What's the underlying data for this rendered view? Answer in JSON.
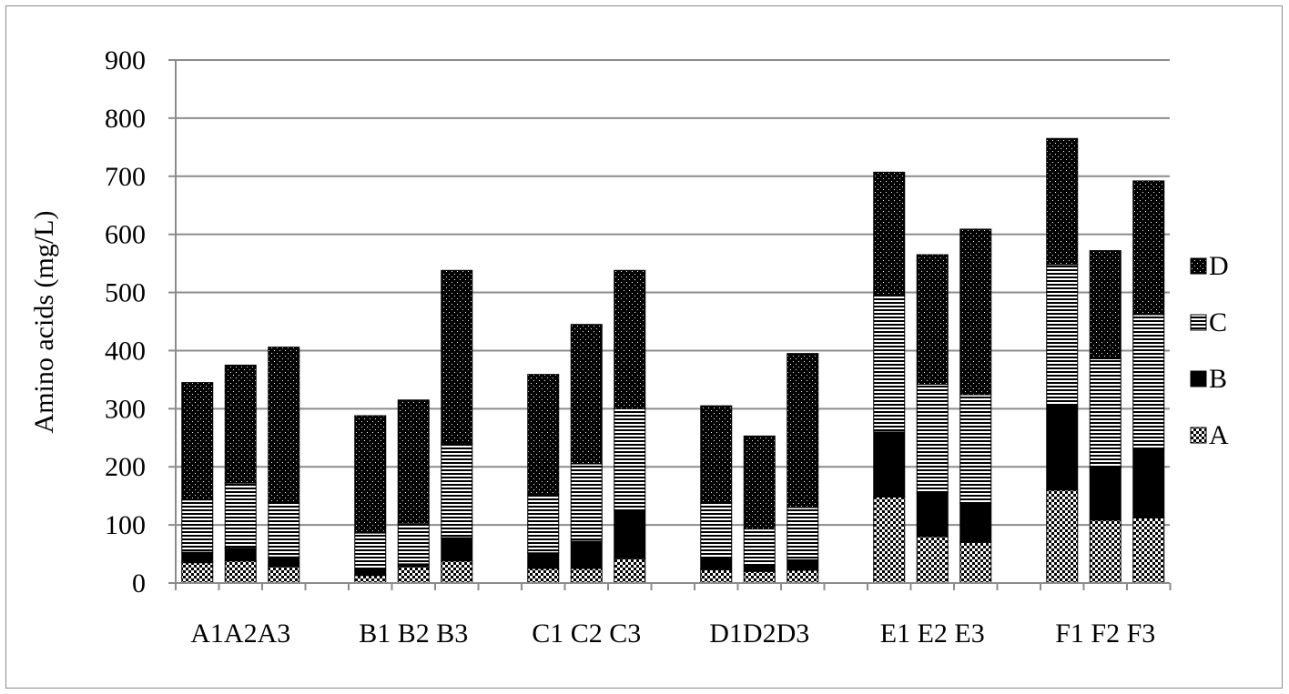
{
  "chart_data": {
    "type": "bar",
    "stacked": true,
    "title": "",
    "xlabel": "",
    "ylabel": "Amino acids (mg/L)",
    "ylim": [
      0,
      900
    ],
    "yticks": [
      0,
      100,
      200,
      300,
      400,
      500,
      600,
      700,
      800,
      900
    ],
    "grid": true,
    "legend_position": "right",
    "categories": [
      "A1",
      "A2",
      "A3",
      "B1",
      "B2",
      "B3",
      "C1",
      "C2",
      "C3",
      "D1",
      "D2",
      "D3",
      "E1",
      "E2",
      "E3",
      "F1",
      "F2",
      "F3"
    ],
    "category_labels": [
      "A1A2A3",
      "B1 B2 B3",
      "C1 C2 C3",
      "D1D2D3",
      "E1 E2 E3",
      "F1 F2 F3"
    ],
    "series": [
      {
        "name": "A",
        "pattern": "checker",
        "values": [
          35,
          38,
          28,
          13,
          28,
          38,
          25,
          25,
          42,
          23,
          20,
          22,
          148,
          80,
          70,
          160,
          108,
          112
        ]
      },
      {
        "name": "B",
        "pattern": "solid",
        "values": [
          18,
          22,
          17,
          10,
          5,
          40,
          27,
          47,
          83,
          20,
          10,
          18,
          112,
          75,
          67,
          145,
          90,
          120
        ]
      },
      {
        "name": "C",
        "pattern": "hstripe",
        "values": [
          90,
          112,
          93,
          63,
          70,
          162,
          100,
          133,
          175,
          95,
          63,
          90,
          235,
          187,
          187,
          243,
          188,
          230
        ]
      },
      {
        "name": "D",
        "pattern": "dots",
        "values": [
          202,
          203,
          268,
          202,
          212,
          298,
          207,
          240,
          238,
          167,
          160,
          265,
          212,
          223,
          285,
          217,
          186,
          230
        ]
      }
    ]
  }
}
